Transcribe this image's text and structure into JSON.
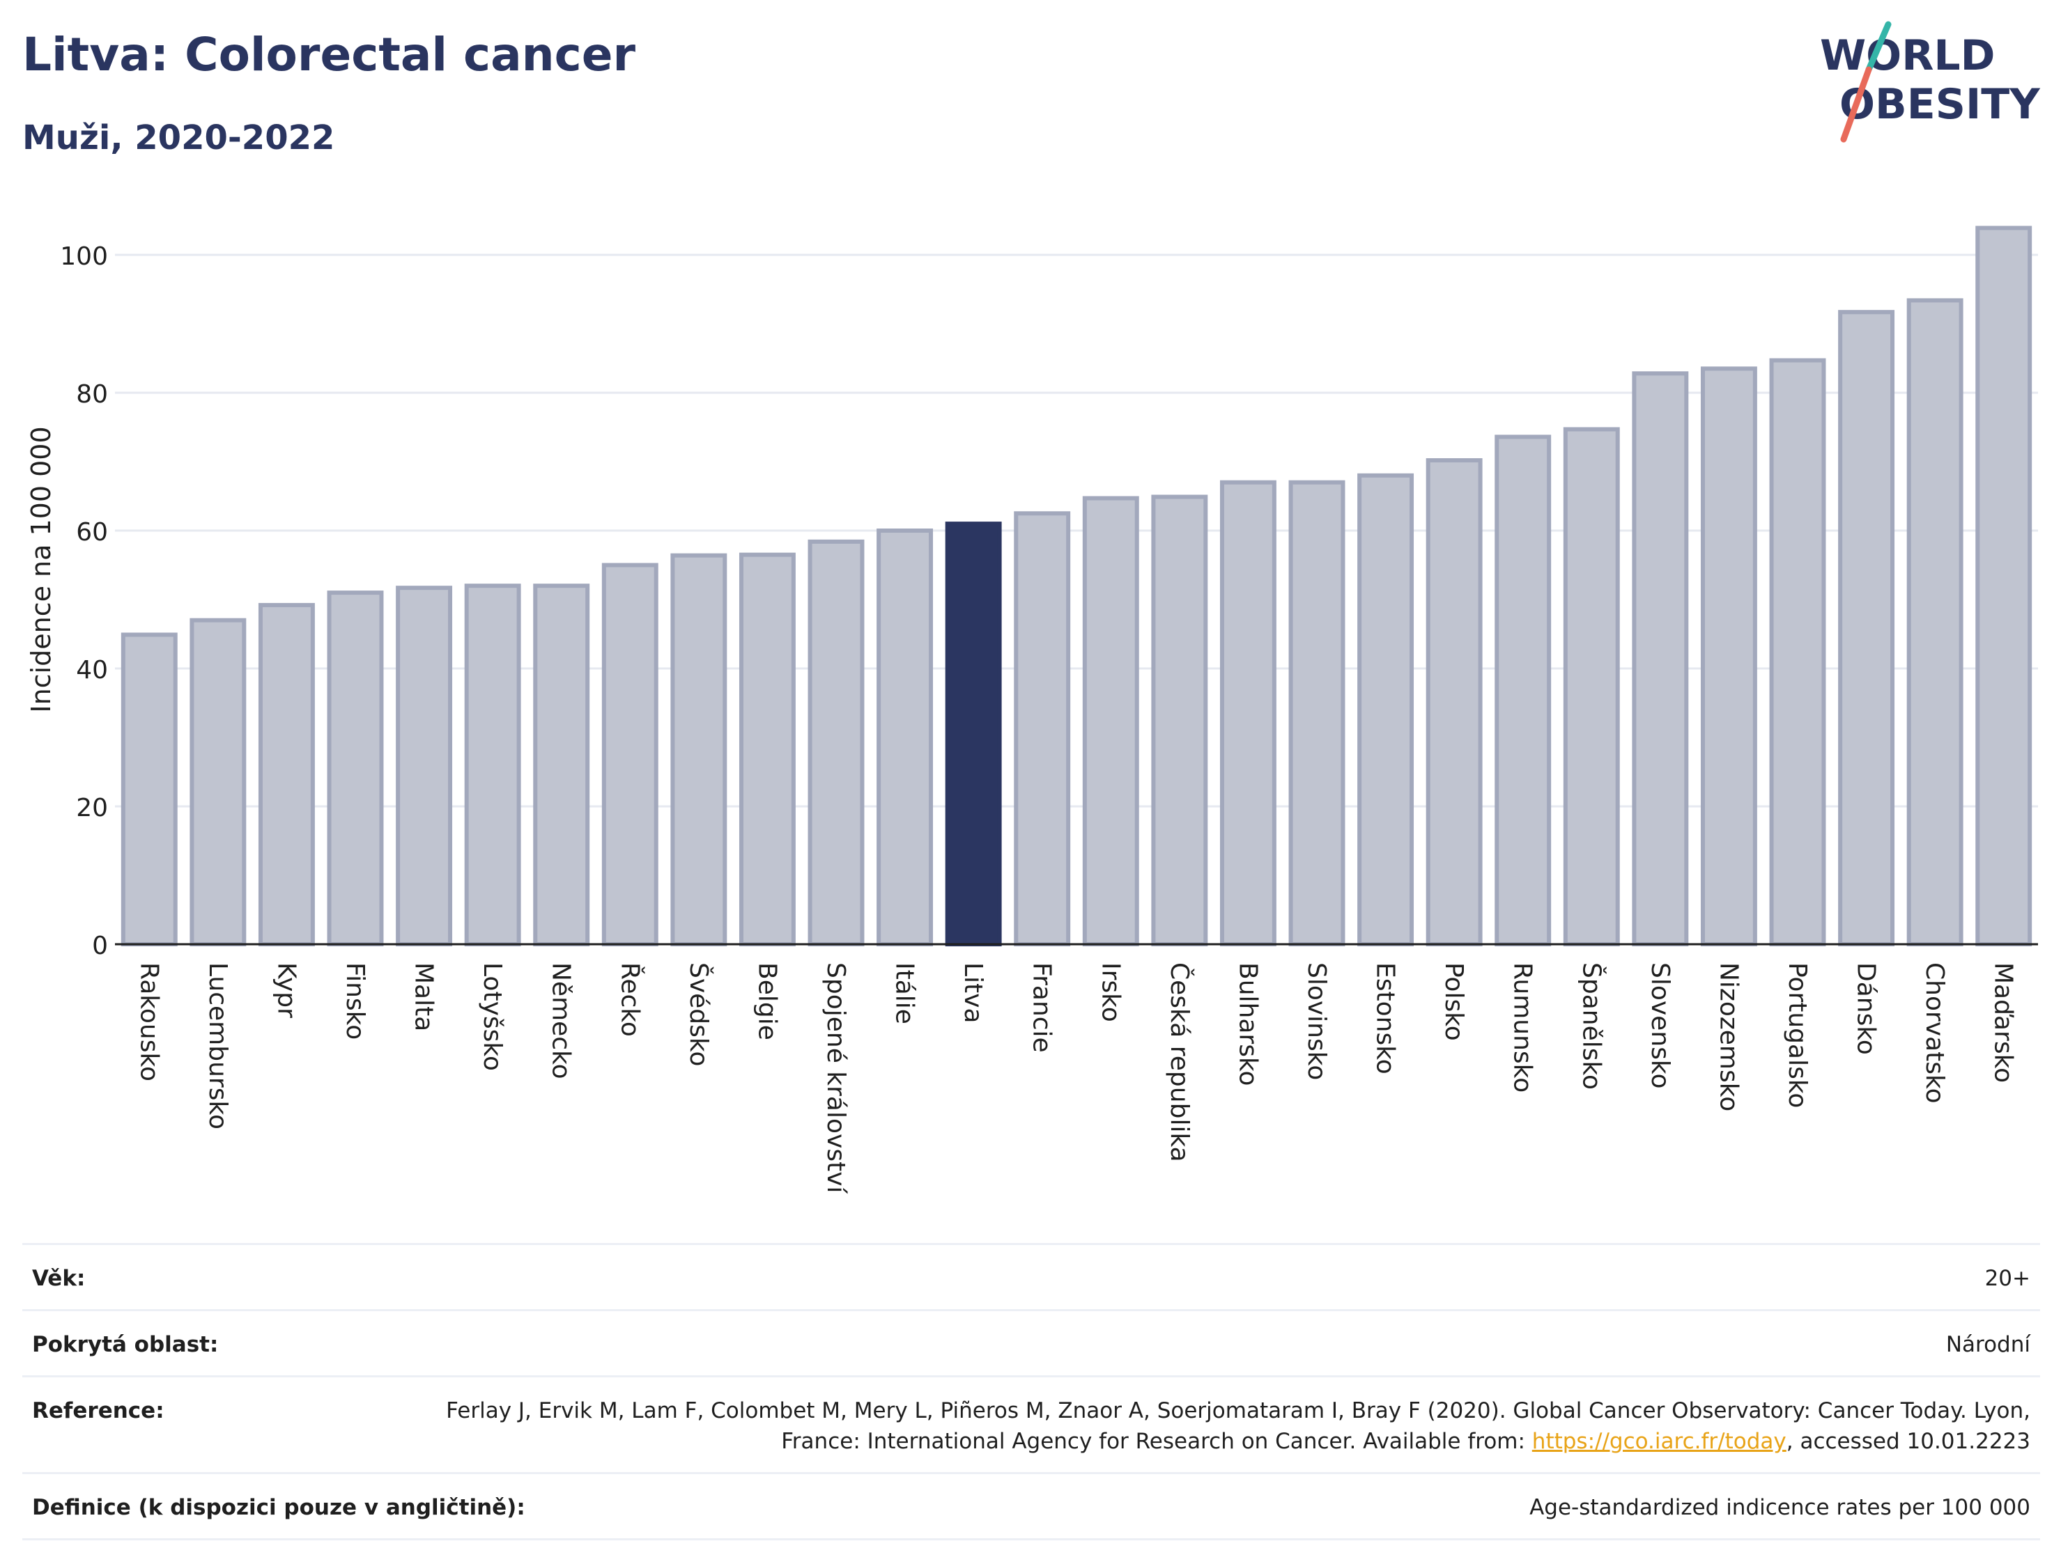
{
  "header": {
    "title": "Litva: Colorectal cancer",
    "subtitle": "Muži, 2020-2022"
  },
  "logo": {
    "line1": "WORLD",
    "line2": "OBESITY",
    "slash_color_top": "#35b5a8",
    "slash_color_bottom": "#e86a5a"
  },
  "colors": {
    "bar": "#c0c4d0",
    "bar_border": "#a2a8bc",
    "highlight": "#2b3661",
    "grid": "#e6e9f0",
    "axis_text": "#1f1f1f"
  },
  "chart_data": {
    "type": "bar",
    "ylabel": "Incidence na 100 000",
    "ylim": [
      0,
      105
    ],
    "yticks": [
      0,
      20,
      40,
      60,
      80,
      100
    ],
    "grid": true,
    "highlight_category": "Litva",
    "categories": [
      "Rakousko",
      "Lucembursko",
      "Kypr",
      "Finsko",
      "Malta",
      "Lotyšsko",
      "Německo",
      "Řecko",
      "Švédsko",
      "Belgie",
      "Spojené království",
      "Itálie",
      "Litva",
      "Francie",
      "Irsko",
      "Česká republika",
      "Bulharsko",
      "Slovinsko",
      "Estonsko",
      "Polsko",
      "Rumunsko",
      "Španělsko",
      "Slovensko",
      "Nizozemsko",
      "Portugalsko",
      "Dánsko",
      "Chorvatsko",
      "Maďarsko"
    ],
    "values": [
      44.9,
      47.0,
      49.2,
      51.0,
      51.7,
      52.0,
      52.0,
      55.0,
      56.4,
      56.5,
      58.4,
      60.0,
      61.0,
      62.5,
      64.7,
      64.9,
      67.0,
      67.0,
      68.0,
      70.2,
      73.6,
      74.7,
      82.8,
      83.5,
      84.7,
      91.7,
      93.4,
      103.9
    ]
  },
  "meta": [
    {
      "label": "Věk:",
      "value": "20+"
    },
    {
      "label": "Pokrytá oblast:",
      "value": "Národní"
    },
    {
      "label": "Reference:",
      "value_before": "Ferlay J, Ervik M, Lam F, Colombet M, Mery L, Piñeros M, Znaor A, Soerjomataram I, Bray F (2020). Global Cancer Observatory: Cancer Today. Lyon, France: International Agency for Research on Cancer. Available from: ",
      "link": "https://gco.iarc.fr/today",
      "value_after": ", accessed 10.01.2223"
    },
    {
      "label": "Definice (k dispozici pouze v angličtině):",
      "value": "Age-standardized indicence rates per 100 000"
    }
  ]
}
